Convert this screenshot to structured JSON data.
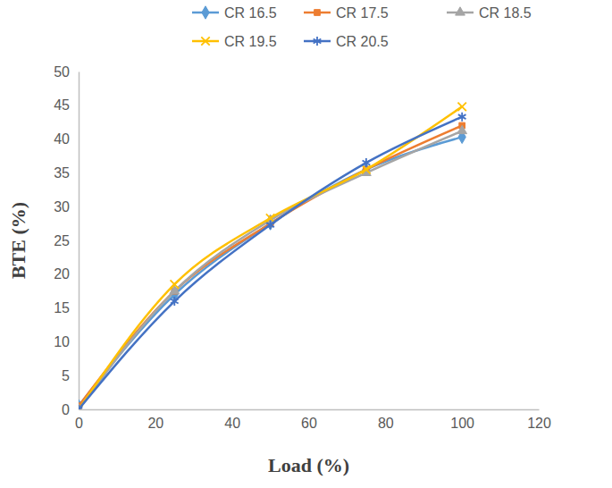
{
  "chart_data": {
    "type": "line",
    "x_label": "Load (%)",
    "y_label": "BTE (%)",
    "x": [
      0,
      25,
      50,
      75,
      100
    ],
    "series": [
      {
        "name": "CR 16.5",
        "color": "#5b9bd5",
        "marker": "diamond",
        "values": [
          0.5,
          17,
          27.5,
          35.5,
          40.3
        ]
      },
      {
        "name": "CR 17.5",
        "color": "#ed7d31",
        "marker": "square",
        "values": [
          0.5,
          17.5,
          27.5,
          35.5,
          42
        ]
      },
      {
        "name": "CR 18.5",
        "color": "#a5a5a5",
        "marker": "triangle",
        "values": [
          0,
          17.5,
          28,
          35,
          41.2
        ]
      },
      {
        "name": "CR 19.5",
        "color": "#ffc000",
        "marker": "x",
        "values": [
          0,
          18.5,
          28.3,
          35.5,
          44.8
        ]
      },
      {
        "name": "CR 20.5",
        "color": "#4472c4",
        "marker": "asterisk",
        "values": [
          0,
          16,
          27.3,
          36.5,
          43.3
        ]
      }
    ],
    "xlim": [
      0,
      120
    ],
    "xticks": [
      0,
      20,
      40,
      60,
      80,
      100,
      120
    ],
    "ylim": [
      0,
      50
    ],
    "yticks": [
      0,
      5,
      10,
      15,
      20,
      25,
      30,
      35,
      40,
      45,
      50
    ],
    "grid": false,
    "legend": "top"
  }
}
